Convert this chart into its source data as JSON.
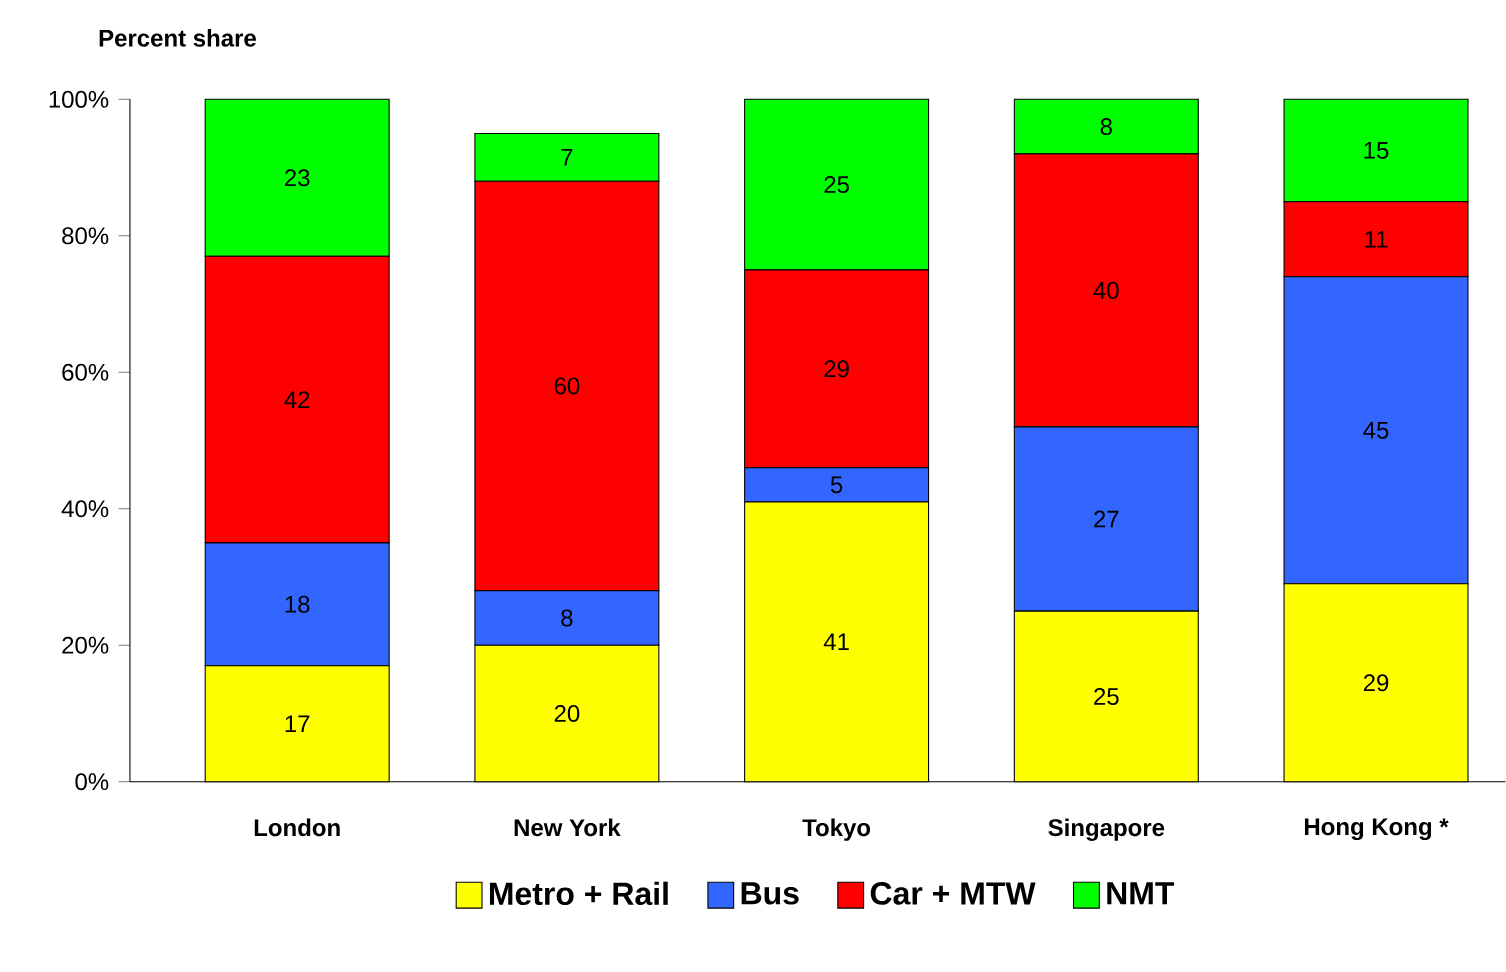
{
  "chart_data": {
    "type": "bar",
    "stacked": true,
    "data_labels": true,
    "legend": "bottom",
    "ylabel": "Percent share",
    "categories": [
      "London",
      "New York",
      "Tokyo",
      "Singapore",
      "Hong Kong *"
    ],
    "ylim": [
      0,
      100
    ],
    "yticks": [
      {
        "value": 0,
        "label": "0%"
      },
      {
        "value": 20,
        "label": "20%"
      },
      {
        "value": 40,
        "label": "40%"
      },
      {
        "value": 60,
        "label": "60%"
      },
      {
        "value": 80,
        "label": "80%"
      },
      {
        "value": 100,
        "label": "100%"
      }
    ],
    "series": [
      {
        "name": "Metro + Rail",
        "color": "#ffff00",
        "values": [
          17,
          20,
          41,
          25,
          29
        ]
      },
      {
        "name": "Bus",
        "color": "#3366ff",
        "values": [
          18,
          8,
          5,
          27,
          45
        ]
      },
      {
        "name": "Car + MTW",
        "color": "#ff0000",
        "values": [
          42,
          60,
          29,
          40,
          11
        ]
      },
      {
        "name": "NMT",
        "color": "#00ff00",
        "values": [
          23,
          7,
          25,
          8,
          15
        ]
      }
    ]
  }
}
